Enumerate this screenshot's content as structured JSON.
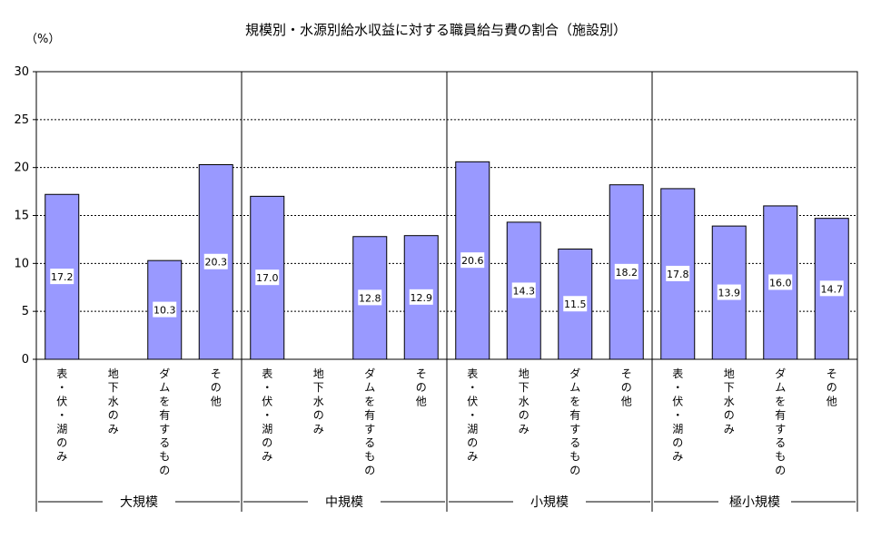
{
  "chart_data": {
    "type": "bar",
    "title": "規模別・水源別給水収益に対する職員給与費の割合（施設別）",
    "unit": "（%）",
    "ylim": [
      0,
      30
    ],
    "yticks": [
      0,
      5,
      10,
      15,
      20,
      25,
      30
    ],
    "grid": "horizontal dashed",
    "bar_color": "#9999ff",
    "groups": [
      {
        "name": "大規模",
        "categories": [
          "表・伏・湖のみ",
          "地下水のみ",
          "ダムを有するもの",
          "その他"
        ],
        "values": [
          17.2,
          null,
          10.3,
          20.3
        ],
        "value_labels": [
          "17.2",
          "",
          "10.3",
          "20.3"
        ]
      },
      {
        "name": "中規模",
        "categories": [
          "表・伏・湖のみ",
          "地下水のみ",
          "ダムを有するもの",
          "その他"
        ],
        "values": [
          17.0,
          null,
          12.8,
          12.9
        ],
        "value_labels": [
          "17.0",
          "",
          "12.8",
          "12.9"
        ]
      },
      {
        "name": "小規模",
        "categories": [
          "表・伏・湖のみ",
          "地下水のみ",
          "ダムを有するもの",
          "その他"
        ],
        "values": [
          20.6,
          14.3,
          11.5,
          18.2
        ],
        "value_labels": [
          "20.6",
          "14.3",
          "11.5",
          "18.2"
        ]
      },
      {
        "name": "極小規模",
        "categories": [
          "表・伏・湖のみ",
          "地下水のみ",
          "ダムを有するもの",
          "その他"
        ],
        "values": [
          17.8,
          13.9,
          16.0,
          14.7
        ],
        "value_labels": [
          "17.8",
          "13.9",
          "16.0",
          "14.7"
        ]
      }
    ]
  }
}
